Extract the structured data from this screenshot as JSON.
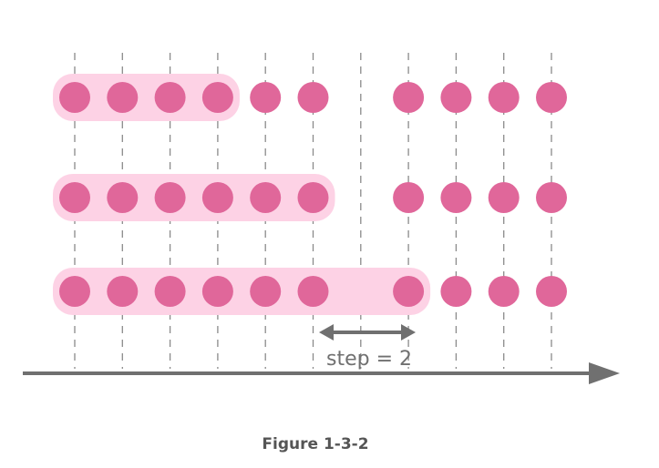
{
  "diagram": {
    "columns": 11,
    "rows": [
      {
        "present": [
          true,
          true,
          true,
          true,
          true,
          true,
          false,
          true,
          true,
          true,
          true
        ],
        "window": [
          0,
          3
        ]
      },
      {
        "present": [
          true,
          true,
          true,
          true,
          true,
          true,
          false,
          true,
          true,
          true,
          true
        ],
        "window": [
          0,
          5
        ]
      },
      {
        "present": [
          true,
          true,
          true,
          true,
          true,
          true,
          false,
          true,
          true,
          true,
          true
        ],
        "window": [
          0,
          7
        ]
      }
    ],
    "step_label": "step = 2",
    "caption": "Figure 1-3-2",
    "colors": {
      "dot": "#e0679a",
      "window": "#fdd2e5",
      "gray": "#707070",
      "grid": "#8a8a8a"
    }
  }
}
